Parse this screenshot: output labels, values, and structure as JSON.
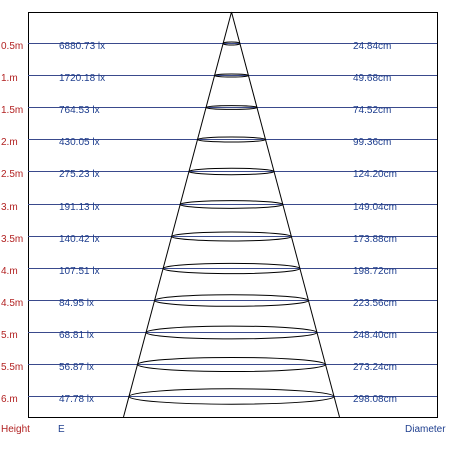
{
  "rows": [
    {
      "height": "0.5m",
      "illuminance": "6880.73 lx",
      "diameter": "24.84cm"
    },
    {
      "height": "1.m",
      "illuminance": "1720.18 lx",
      "diameter": "49.68cm"
    },
    {
      "height": "1.5m",
      "illuminance": "764.53 lx",
      "diameter": "74.52cm"
    },
    {
      "height": "2.m",
      "illuminance": "430.05 lx",
      "diameter": "99.36cm"
    },
    {
      "height": "2.5m",
      "illuminance": "275.23 lx",
      "diameter": "124.20cm"
    },
    {
      "height": "3.m",
      "illuminance": "191.13 lx",
      "diameter": "149.04cm"
    },
    {
      "height": "3.5m",
      "illuminance": "140.42 lx",
      "diameter": "173.88cm"
    },
    {
      "height": "4.m",
      "illuminance": "107.51 lx",
      "diameter": "198.72cm"
    },
    {
      "height": "4.5m",
      "illuminance": "84.95 lx",
      "diameter": "223.56cm"
    },
    {
      "height": "5.m",
      "illuminance": "68.81 lx",
      "diameter": "248.40cm"
    },
    {
      "height": "5.5m",
      "illuminance": "56.87 lx",
      "diameter": "273.24cm"
    },
    {
      "height": "6.m",
      "illuminance": "47.78 lx",
      "diameter": "298.08cm"
    }
  ],
  "footer": {
    "height_label": "Height",
    "e_label": "E",
    "diameter_label": "Diameter"
  },
  "colors": {
    "height_text": "#b22222",
    "value_text": "#1f3f8f",
    "row_line": "#3a4a8c",
    "frame": "#000000",
    "cone": "#000000"
  }
}
